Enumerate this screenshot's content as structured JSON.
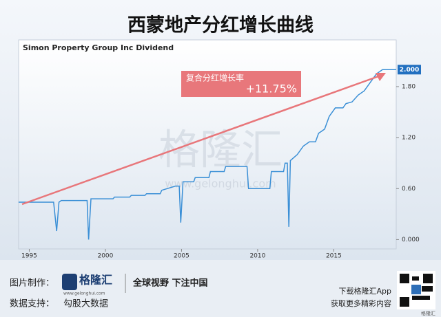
{
  "header": {
    "title": "西蒙地产分红增长曲线"
  },
  "chart_data": {
    "type": "line",
    "title": "Simon Property Group Inc Dividend",
    "color": "#3a8fd6",
    "x": [
      1994.3,
      1996.6,
      1996.8,
      1996.95,
      1997.1,
      1998.8,
      1998.9,
      1999.05,
      2000.5,
      2000.6,
      2001.6,
      2001.7,
      2002.6,
      2002.7,
      2003.6,
      2003.7,
      2004.6,
      2004.85,
      2004.95,
      2005.1,
      2005.8,
      2005.9,
      2006.8,
      2006.9,
      2007.8,
      2007.9,
      2009.3,
      2009.4,
      2010.8,
      2010.9,
      2011.7,
      2011.8,
      2011.95,
      2012.05,
      2012.15,
      2012.6,
      2013.0,
      2013.4,
      2013.8,
      2014.0,
      2014.4,
      2014.7,
      2015.1,
      2015.6,
      2015.8,
      2016.2,
      2016.6,
      2017.0,
      2017.4,
      2017.8,
      2018.2,
      2019.1
    ],
    "values": [
      0.44,
      0.44,
      0.1,
      0.44,
      0.46,
      0.46,
      0,
      0.48,
      0.48,
      0.5,
      0.5,
      0.52,
      0.52,
      0.54,
      0.54,
      0.58,
      0.63,
      0.63,
      0.2,
      0.68,
      0.68,
      0.73,
      0.73,
      0.8,
      0.8,
      0.86,
      0.86,
      0.6,
      0.6,
      0.8,
      0.8,
      0.9,
      0.9,
      0.15,
      0.93,
      1.0,
      1.1,
      1.15,
      1.15,
      1.25,
      1.3,
      1.45,
      1.55,
      1.55,
      1.6,
      1.62,
      1.7,
      1.75,
      1.85,
      1.95,
      2.0,
      2.0
    ],
    "xlim": [
      1994.3,
      2019.1
    ],
    "ylim": [
      -0.11,
      2.35
    ],
    "xticks": [
      1995,
      2000,
      2005,
      2010,
      2015
    ],
    "yticks": [
      {
        "value": 0,
        "label": "0.000"
      },
      {
        "value": 0.6,
        "label": "0.60"
      },
      {
        "value": 1.2,
        "label": "1.20"
      },
      {
        "value": 1.8,
        "label": "1.80"
      }
    ],
    "end_label": {
      "value": 2.0,
      "label": "2.000"
    },
    "annotations": [
      "复合分红增长率",
      "+11.75%"
    ]
  },
  "watermark": {
    "text": "格隆汇",
    "url": "www.gelonghui.com"
  },
  "footer": {
    "made_by_label": "图片制作：",
    "logo": "格隆汇",
    "logo_url": "www.gelonghui.com",
    "slogan": "全球视野 下注中国",
    "data_label": "数据支持：",
    "data_source": "勾股大数据",
    "download": "下载格隆汇App",
    "more": "获取更多精彩内容",
    "corner": "格隆汇"
  }
}
